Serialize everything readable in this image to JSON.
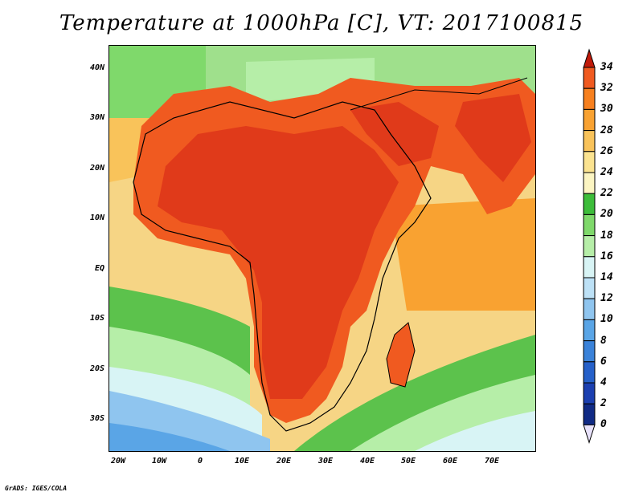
{
  "title": "Temperature at 1000hPa [C], VT: 2017100815",
  "credit": "GrADS: IGES/COLA",
  "map": {
    "lat_labels": [
      "40N",
      "30N",
      "20N",
      "10N",
      "EQ",
      "10S",
      "20S",
      "30S"
    ],
    "lon_labels": [
      "20W",
      "10W",
      "0",
      "10E",
      "20E",
      "30E",
      "40E",
      "50E",
      "60E",
      "70E"
    ],
    "lat_range": [
      -36,
      44
    ],
    "lon_range": [
      -23,
      80
    ],
    "field": "2m-like air temperature at 1000hPa over Africa, Arabia and India"
  },
  "colorbar": {
    "labels": [
      "34",
      "32",
      "30",
      "28",
      "26",
      "24",
      "22",
      "20",
      "18",
      "16",
      "14",
      "12",
      "10",
      "8",
      "6",
      "4",
      "2",
      "0"
    ],
    "colors": [
      "#e03a1a",
      "#f05a20",
      "#f7801e",
      "#f9a231",
      "#f9c35a",
      "#fbe390",
      "#fcf5c2",
      "#3dbd3a",
      "#7fd96b",
      "#b6eea8",
      "#d8f4f5",
      "#bde1f6",
      "#8fc5ef",
      "#5aa5e6",
      "#3a82d9",
      "#2560c9",
      "#1b3fb0",
      "#102a85",
      "#0b1a5c"
    ],
    "top_arrow_color": "#c01a0a",
    "bottom_arrow_color": "#e8e2fb"
  }
}
